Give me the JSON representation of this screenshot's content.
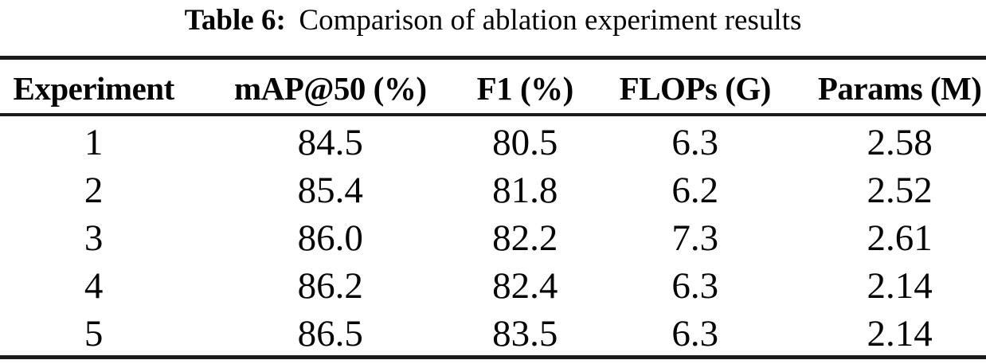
{
  "caption": {
    "label": "Table 6:",
    "text": "Comparison of ablation experiment results"
  },
  "table": {
    "columns": [
      "Experiment",
      "mAP@50 (%)",
      "F1 (%)",
      "FLOPs (G)",
      "Params (M)"
    ],
    "rows": [
      [
        "1",
        "84.5",
        "80.5",
        "6.3",
        "2.58"
      ],
      [
        "2",
        "85.4",
        "81.8",
        "6.2",
        "2.52"
      ],
      [
        "3",
        "86.0",
        "82.2",
        "7.3",
        "2.61"
      ],
      [
        "4",
        "86.2",
        "82.4",
        "6.3",
        "2.14"
      ],
      [
        "5",
        "86.5",
        "83.5",
        "6.3",
        "2.14"
      ]
    ]
  },
  "colors": {
    "text": "#050505",
    "rule": "#1c1c1c",
    "background": "#ffffff"
  }
}
